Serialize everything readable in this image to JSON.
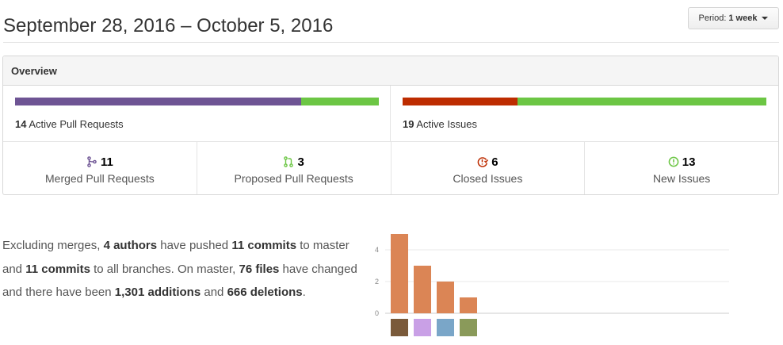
{
  "header": {
    "title": "September 28, 2016 – October 5, 2016",
    "period_prefix": "Period:",
    "period_value": "1 week"
  },
  "overview": {
    "title": "Overview",
    "pull_requests": {
      "active_count": "14",
      "active_label": "Active Pull Requests",
      "merged_fraction": 0.786,
      "merged_color": "#6e5494",
      "open_color": "#6cc644"
    },
    "issues": {
      "active_count": "19",
      "active_label": "Active Issues",
      "closed_fraction": 0.316,
      "closed_color": "#bd2c00",
      "new_color": "#6cc644"
    },
    "stats": [
      {
        "icon": "git-merge-icon",
        "value": "11",
        "label": "Merged Pull Requests",
        "color": "#6e5494"
      },
      {
        "icon": "git-pull-request-icon",
        "value": "3",
        "label": "Proposed Pull Requests",
        "color": "#6cc644"
      },
      {
        "icon": "issue-closed-icon",
        "value": "6",
        "label": "Closed Issues",
        "color": "#bd2c00"
      },
      {
        "icon": "issue-opened-icon",
        "value": "13",
        "label": "New Issues",
        "color": "#6cc644"
      }
    ]
  },
  "summary": {
    "t1": "Excluding merges, ",
    "authors": "4 authors",
    "t2": " have pushed ",
    "commits_master": "11 commits",
    "t3": " to master and ",
    "commits_all": "11 commits",
    "t4": " to all branches. On master, ",
    "files": "76 files",
    "t5": " have changed and there have been ",
    "additions_num": "1,301",
    "additions_word": " additions",
    "t6": " and ",
    "deletions_num": "666",
    "deletions_word": " deletions",
    "t7": "."
  },
  "chart_data": {
    "type": "bar",
    "categories": [
      "author-1",
      "author-2",
      "author-3",
      "author-4"
    ],
    "values": [
      5,
      3,
      2,
      1
    ],
    "ylim": [
      0,
      5
    ],
    "yticks": [
      "0",
      "2",
      "4"
    ],
    "bar_color": "#db8555",
    "avatars": [
      {
        "name": "avatar-author-1",
        "color": "#7a5a3a"
      },
      {
        "name": "avatar-author-2",
        "color": "#c9a0e6"
      },
      {
        "name": "avatar-author-3",
        "color": "#7aa6c8"
      },
      {
        "name": "avatar-author-4",
        "color": "#8a9a5a"
      }
    ]
  }
}
